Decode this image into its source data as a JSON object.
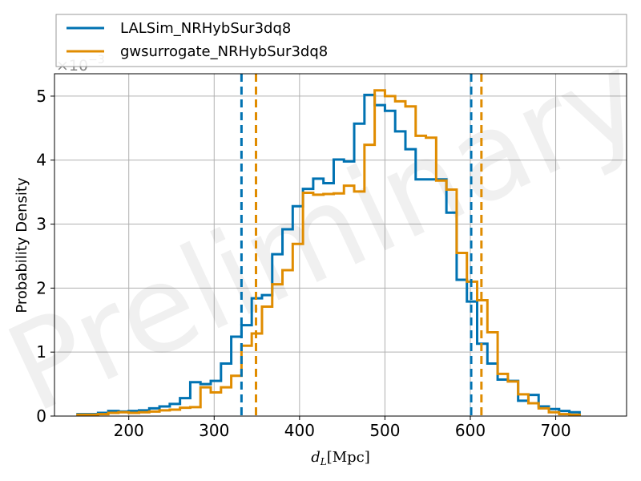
{
  "chart_data": {
    "type": "histogram",
    "watermark": "Preliminary",
    "xlabel": "d_L [Mpc]",
    "xlabel_parts": {
      "main": "d",
      "sub": "L",
      "unit": "[Mpc]"
    },
    "ylabel": "Probability Density",
    "y_multiplier": "×10⁻³",
    "y_multiplier_parts": {
      "base": "×10",
      "exp": "−3"
    },
    "xlim": [
      113,
      783
    ],
    "ylim": [
      0,
      5.35
    ],
    "x_ticks": [
      "200",
      "300",
      "400",
      "500",
      "600",
      "700"
    ],
    "y_ticks": [
      "0",
      "1",
      "2",
      "3",
      "4",
      "5"
    ],
    "grid": true,
    "legend_position": "top (above axes)",
    "colors": {
      "lalsim": "#0072b2",
      "gwsurrogate": "#e08c00",
      "grid": "#b0b0b0"
    },
    "series": [
      {
        "name": "LALSim_NRHybSur3dq8",
        "color": "#0072b2",
        "bin_edges": [
          140,
          152,
          164,
          176,
          188,
          200,
          212,
          224,
          236,
          248,
          260,
          272,
          284,
          296,
          308,
          320,
          332,
          344,
          356,
          368,
          380,
          392,
          404,
          416,
          428,
          440,
          452,
          464,
          476,
          488,
          500,
          512,
          524,
          536,
          548,
          560,
          572,
          584,
          596,
          608,
          620,
          632,
          644,
          656,
          668,
          680,
          692,
          704,
          716,
          728
        ],
        "density": [
          0.03,
          0.03,
          0.05,
          0.08,
          0.07,
          0.08,
          0.09,
          0.12,
          0.15,
          0.19,
          0.28,
          0.53,
          0.5,
          0.55,
          0.82,
          1.24,
          1.42,
          1.84,
          1.89,
          2.53,
          2.92,
          3.28,
          3.55,
          3.71,
          3.64,
          4.01,
          3.98,
          4.57,
          5.02,
          4.86,
          4.77,
          4.45,
          4.17,
          3.7,
          3.7,
          3.7,
          3.18,
          2.13,
          1.79,
          1.13,
          0.82,
          0.57,
          0.55,
          0.24,
          0.33,
          0.15,
          0.11,
          0.08,
          0.06
        ],
        "credible_interval": [
          332,
          601
        ]
      },
      {
        "name": "gwsurrogate_NRHybSur3dq8",
        "color": "#e08c00",
        "bin_edges": [
          140,
          152,
          164,
          176,
          188,
          200,
          212,
          224,
          236,
          248,
          260,
          272,
          284,
          296,
          308,
          320,
          332,
          344,
          356,
          368,
          380,
          392,
          404,
          416,
          428,
          440,
          452,
          464,
          476,
          488,
          500,
          512,
          524,
          536,
          548,
          560,
          572,
          584,
          596,
          608,
          620,
          632,
          644,
          656,
          668,
          680,
          692,
          704,
          716,
          728
        ],
        "density": [
          0.02,
          0.02,
          0.03,
          0.05,
          0.06,
          0.05,
          0.06,
          0.07,
          0.09,
          0.1,
          0.13,
          0.14,
          0.45,
          0.37,
          0.45,
          0.63,
          1.1,
          1.29,
          1.71,
          2.06,
          2.28,
          2.69,
          3.49,
          3.46,
          3.47,
          3.48,
          3.6,
          3.51,
          4.24,
          5.09,
          5.0,
          4.92,
          4.84,
          4.38,
          4.35,
          3.68,
          3.54,
          2.55,
          2.1,
          1.81,
          1.31,
          0.66,
          0.54,
          0.34,
          0.2,
          0.12,
          0.06,
          0.03,
          0.02
        ],
        "credible_interval": [
          349,
          613
        ]
      }
    ]
  }
}
